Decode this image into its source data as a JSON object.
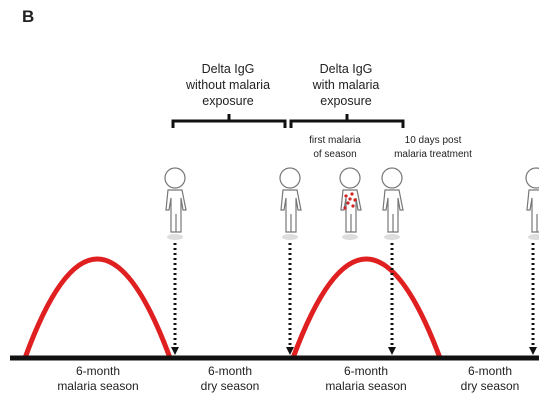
{
  "panel_label": "B",
  "brackets": [
    {
      "lines": [
        "Delta IgG",
        "without malaria",
        "exposure"
      ]
    },
    {
      "lines": [
        "Delta IgG",
        "with malaria",
        "exposure"
      ]
    }
  ],
  "annotations": [
    {
      "lines": [
        "first malaria",
        "of season"
      ]
    },
    {
      "lines": [
        "10 days post",
        "malaria treatment"
      ]
    }
  ],
  "seasons": [
    {
      "lines": [
        "6-month",
        "malaria season"
      ]
    },
    {
      "lines": [
        "6-month",
        "dry season"
      ]
    },
    {
      "lines": [
        "6-month",
        "malaria season"
      ]
    },
    {
      "lines": [
        "6-month",
        "dry season"
      ]
    }
  ]
}
